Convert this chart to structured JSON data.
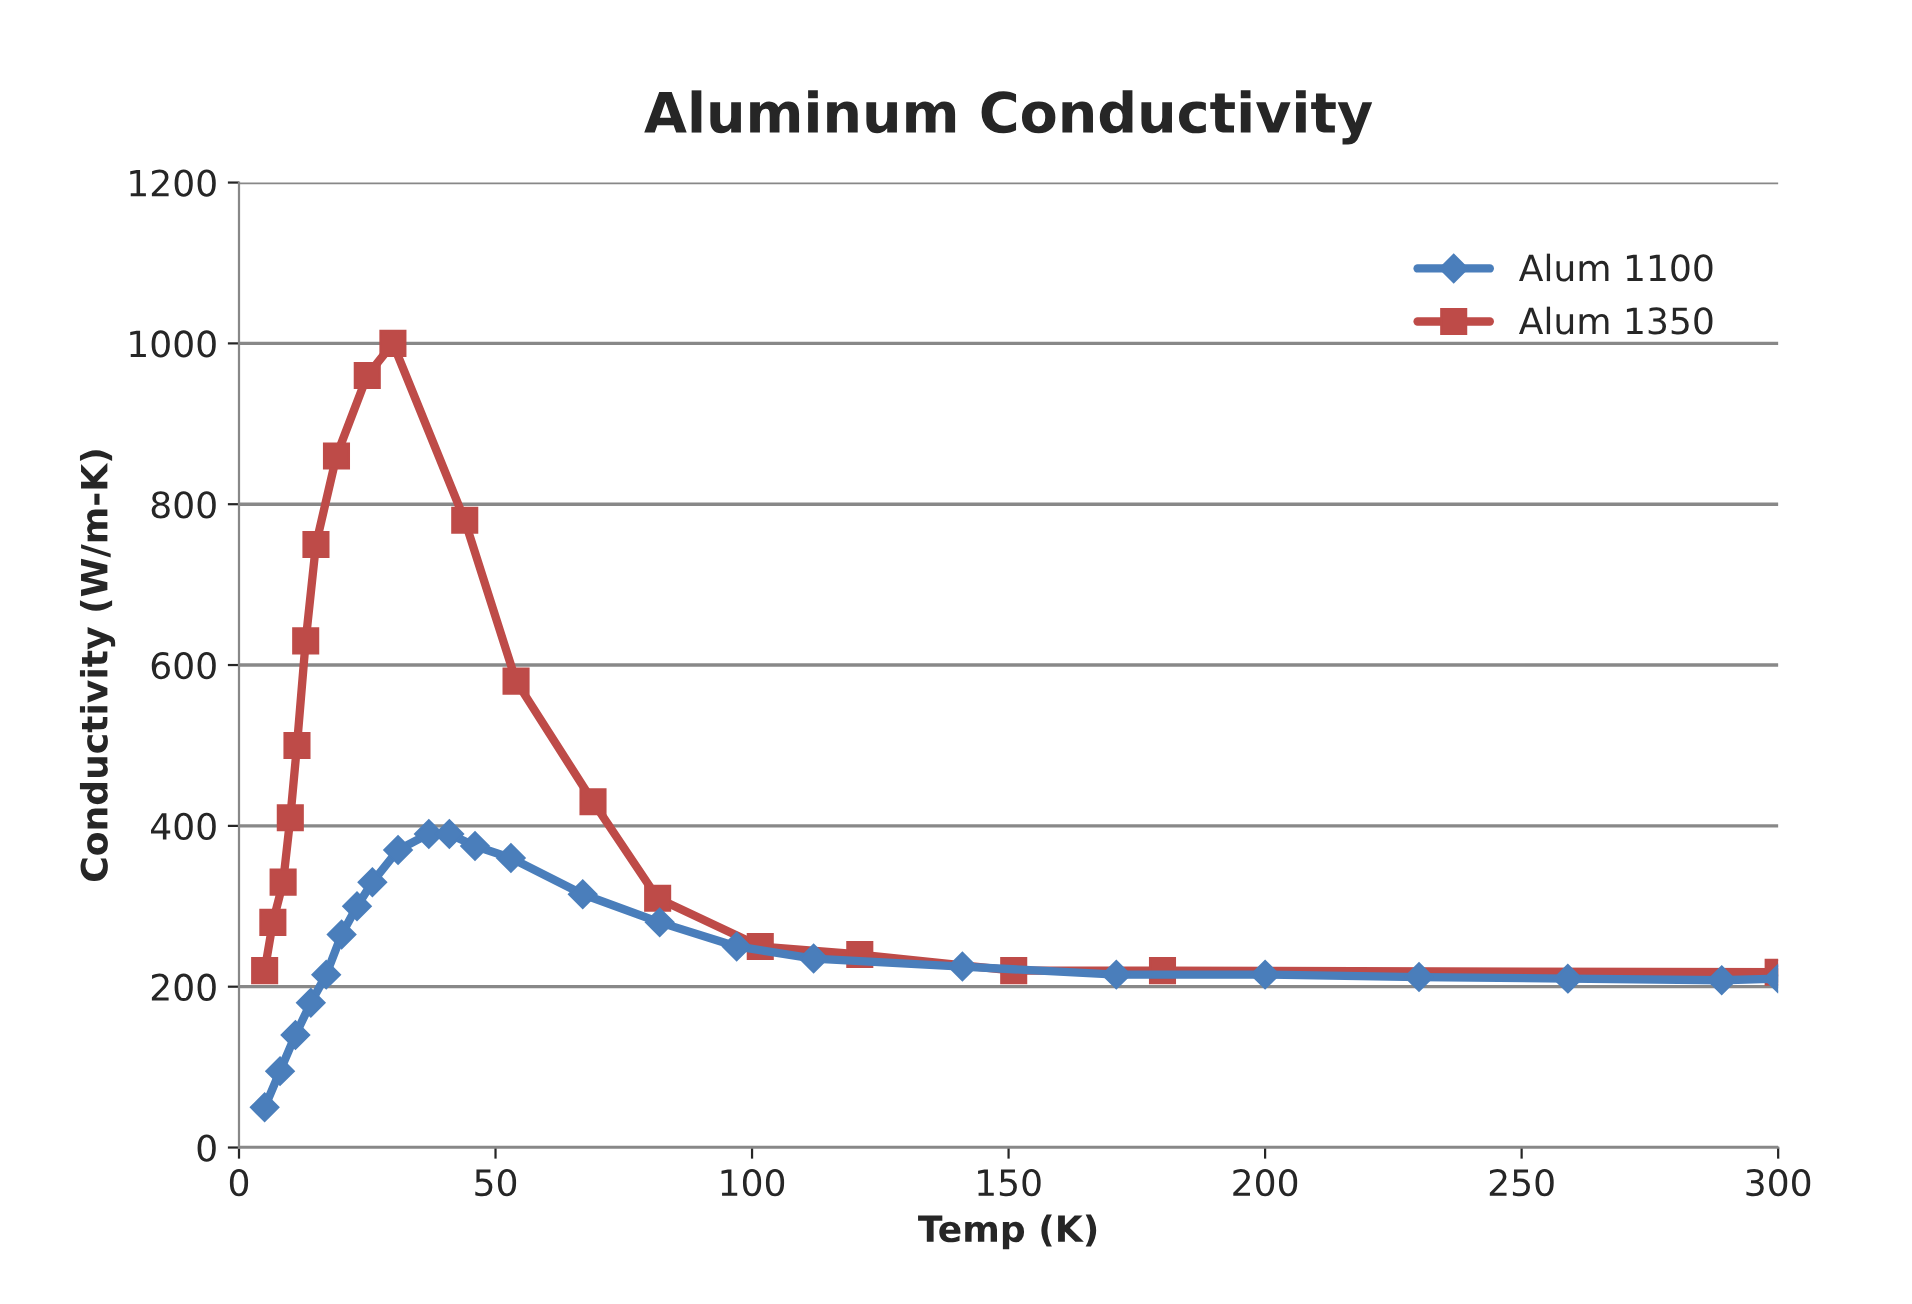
{
  "chart_data": {
    "type": "line",
    "title": "Aluminum Conductivity",
    "xlabel": "Temp (K)",
    "ylabel": "Conductivity (W/m-K)",
    "series": [
      {
        "name": "Alum 1100",
        "color": "#4a7ebb",
        "marker": "diamond",
        "x": [
          5,
          8,
          11,
          14,
          17,
          20,
          23,
          26,
          31,
          37,
          41,
          46,
          53,
          67,
          82,
          97,
          112,
          141,
          171,
          200,
          230,
          259,
          289,
          300
        ],
        "values": [
          50,
          95,
          140,
          180,
          215,
          265,
          300,
          330,
          370,
          390,
          390,
          375,
          360,
          315,
          280,
          250,
          235,
          225,
          215,
          215,
          212,
          210,
          208,
          210
        ]
      },
      {
        "name": "Alum 1350",
        "color": "#be4b48",
        "marker": "square",
        "x": [
          5,
          6.6,
          8.6,
          10,
          11.3,
          13,
          15,
          19,
          25,
          30,
          44,
          54,
          69,
          81.6,
          101.6,
          121,
          151,
          180,
          300
        ],
        "values": [
          220,
          280,
          330,
          410,
          500,
          630,
          750,
          860,
          960,
          1000,
          780,
          580,
          430,
          310,
          250,
          240,
          220,
          220,
          218
        ]
      }
    ],
    "xlim": [
      0,
      300
    ],
    "xticks": [
      0,
      50,
      100,
      150,
      200,
      250,
      300
    ],
    "ylim": [
      0,
      1200
    ],
    "yticks": [
      0,
      200,
      400,
      600,
      800,
      1000,
      1200
    ],
    "grid": "y",
    "legend": "top right",
    "line_style": "solid"
  }
}
